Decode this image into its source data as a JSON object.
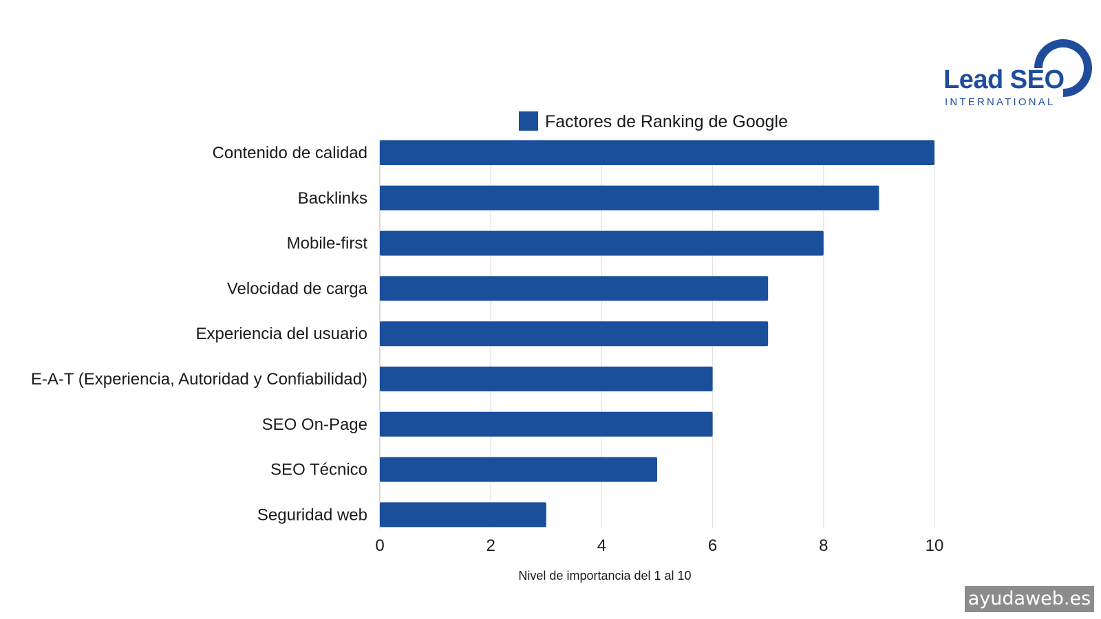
{
  "chart_data": {
    "type": "bar",
    "orientation": "horizontal",
    "categories": [
      "Contenido de calidad",
      "Backlinks",
      "Mobile-first",
      "Velocidad de carga",
      "Experiencia del usuario",
      "E-A-T (Experiencia, Autoridad y Confiabilidad)",
      "SEO On-Page",
      "SEO Técnico",
      "Seguridad web"
    ],
    "series": [
      {
        "name": "Factores de Ranking de Google",
        "values": [
          10,
          9,
          8,
          7,
          7,
          6,
          6,
          5,
          3
        ],
        "color": "#1a4f9c"
      }
    ],
    "xlabel": "Nivel de importancia del 1 al 10",
    "ylabel": "",
    "xlim": [
      0,
      10
    ],
    "xticks": [
      "0",
      "2",
      "4",
      "6",
      "8",
      "10"
    ],
    "grid": "vertical",
    "legend_position": "top"
  },
  "logo": {
    "title": "Lead SEO",
    "subtitle": "INTERNATIONAL",
    "color": "#1f4d9c"
  },
  "watermark": "ayudaweb.es"
}
